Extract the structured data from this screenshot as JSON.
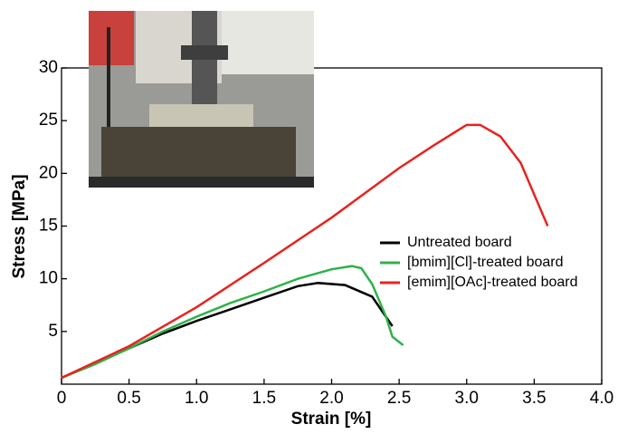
{
  "chart_data": {
    "type": "line",
    "x_label": "Strain [%]",
    "y_label": "Stress [MPa]",
    "xlim": [
      0,
      4
    ],
    "ylim": [
      0,
      30
    ],
    "xticks": [
      0,
      0.5,
      {
        "value": 1,
        "label": "1.0"
      },
      1.5,
      {
        "value": 2,
        "label": "2.0"
      },
      2.5,
      {
        "value": 3,
        "label": "3.0"
      },
      3.5,
      {
        "value": 4,
        "label": "4.0"
      }
    ],
    "yticks": [
      5,
      10,
      15,
      20,
      25,
      30
    ],
    "legend": "right",
    "series": [
      {
        "name": "Untreated board",
        "color": "#000000",
        "x": [
          0,
          0.25,
          0.5,
          0.75,
          1.0,
          1.25,
          1.5,
          1.75,
          1.9,
          2.1,
          2.3,
          2.45
        ],
        "values": [
          0.6,
          2.0,
          3.4,
          4.8,
          6.0,
          7.1,
          8.2,
          9.3,
          9.6,
          9.4,
          8.3,
          5.5
        ]
      },
      {
        "name": "[bmim][Cl]-treated board",
        "color": "#2fb24a",
        "x": [
          0,
          0.25,
          0.5,
          0.75,
          1.0,
          1.25,
          1.5,
          1.75,
          2.0,
          2.15,
          2.22,
          2.3,
          2.4,
          2.45,
          2.53
        ],
        "values": [
          0.6,
          1.9,
          3.4,
          5.0,
          6.4,
          7.7,
          8.8,
          10.0,
          10.9,
          11.2,
          11.0,
          9.5,
          6.5,
          4.5,
          3.7
        ]
      },
      {
        "name": "[emim][OAc]-treated board",
        "color": "#e8231f",
        "x": [
          0,
          0.5,
          1.0,
          1.5,
          2.0,
          2.5,
          2.75,
          3.0,
          3.1,
          3.25,
          3.4,
          3.5,
          3.6
        ],
        "values": [
          0.6,
          3.6,
          7.3,
          11.5,
          15.8,
          20.5,
          22.6,
          24.6,
          24.6,
          23.5,
          21.0,
          18.0,
          15.0
        ]
      }
    ]
  }
}
